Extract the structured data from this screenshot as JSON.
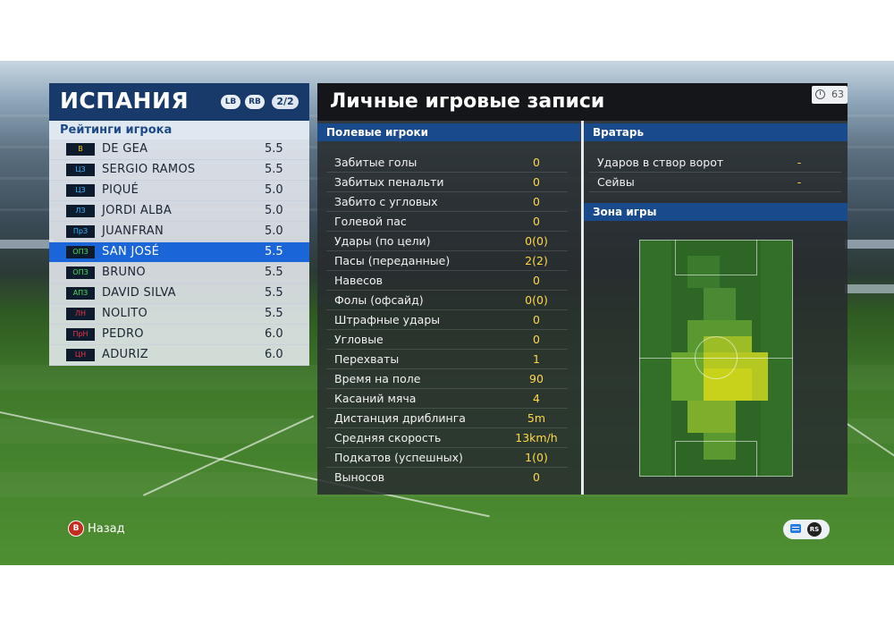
{
  "team": {
    "name": "ИСПАНИЯ",
    "lb": "LB",
    "rb": "RB",
    "page": "2/2"
  },
  "ratings_header": "Рейтинги игрока",
  "players": [
    {
      "pos": "В",
      "name": "DE GEA",
      "rating": "5.5"
    },
    {
      "pos": "ЦЗ",
      "name": "SERGIO RAMOS",
      "rating": "5.5"
    },
    {
      "pos": "ЦЗ",
      "name": "PIQUÉ",
      "rating": "5.0"
    },
    {
      "pos": "ЛЗ",
      "name": "JORDI ALBA",
      "rating": "5.0"
    },
    {
      "pos": "ПрЗ",
      "name": "JUANFRAN",
      "rating": "5.0"
    },
    {
      "pos": "ОПЗ",
      "name": "SAN JOSÉ",
      "rating": "5.5"
    },
    {
      "pos": "ОПЗ",
      "name": "BRUNO",
      "rating": "5.5"
    },
    {
      "pos": "АПЗ",
      "name": "DAVID SILVA",
      "rating": "5.5"
    },
    {
      "pos": "ЛН",
      "name": "NOLITO",
      "rating": "5.5"
    },
    {
      "pos": "ПрН",
      "name": "PEDRO",
      "rating": "6.0"
    },
    {
      "pos": "ЦН",
      "name": "ADURIZ",
      "rating": "6.0"
    }
  ],
  "records_title": "Личные игровые записи",
  "timer": "63",
  "field_players_header": "Полевые игроки",
  "stats": [
    {
      "label": "Забитые голы",
      "value": "0"
    },
    {
      "label": "Забитых пенальти",
      "value": "0"
    },
    {
      "label": "Забито с угловых",
      "value": "0"
    },
    {
      "label": "Голевой пас",
      "value": "0"
    },
    {
      "label": "Удары (по цели)",
      "value": "0(0)"
    },
    {
      "label": "Пасы (переданные)",
      "value": "2(2)"
    },
    {
      "label": "Навесов",
      "value": "0"
    },
    {
      "label": "Фолы (офсайд)",
      "value": "0(0)"
    },
    {
      "label": "Штрафные удары",
      "value": "0"
    },
    {
      "label": "Угловые",
      "value": "0"
    },
    {
      "label": "Перехваты",
      "value": "1"
    },
    {
      "label": "Время на поле",
      "value": "90"
    },
    {
      "label": "Касаний мяча",
      "value": "4"
    },
    {
      "label": "Дистанция дриблинга",
      "value": "5m"
    },
    {
      "label": "Средняя скорость",
      "value": "13km/h"
    },
    {
      "label": "Подкатов (успешных)",
      "value": "1(0)"
    },
    {
      "label": "Выносов",
      "value": "0"
    }
  ],
  "goalkeeper_header": "Вратарь",
  "gk_stats": [
    {
      "label": "Ударов в створ ворот",
      "value": "-"
    },
    {
      "label": "Сейвы",
      "value": "-"
    }
  ],
  "zone_header": "Зона игры",
  "back_button": {
    "key": "B",
    "label": "Назад"
  },
  "hint": {
    "rs": "RS"
  },
  "colors": {
    "team_header": "#173a6b",
    "selected_row": "#1a66d8",
    "section_header": "#184a8c",
    "stat_value": "#ffd84a",
    "heat_high": "#c8d21a"
  }
}
